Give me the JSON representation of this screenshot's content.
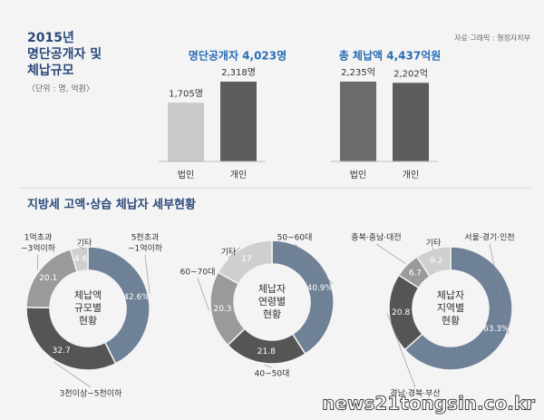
{
  "header": {
    "title_lines": [
      "2015년",
      "명단공개자 및",
      "체납규모"
    ],
    "unit": "〈단위 : 명, 억원〉",
    "source": "자료·그래픽 : 행정자치부",
    "section_title": "지방세 고액·상습 체납자 세부현황",
    "watermark": "news21tongsin.co.kr"
  },
  "chart_data": [
    {
      "type": "bar",
      "title": "명단공개자 4,023명",
      "categories": [
        "법인",
        "개인"
      ],
      "values": [
        1705,
        2318
      ],
      "value_labels": [
        "1,705명",
        "2,318명"
      ],
      "colors": [
        "#c9c9c9",
        "#5d5d5d"
      ]
    },
    {
      "type": "bar",
      "title": "총 체납액 4,437억원",
      "categories": [
        "법인",
        "개인"
      ],
      "values": [
        2235,
        2202
      ],
      "value_labels": [
        "2,235억",
        "2,202억"
      ],
      "colors": [
        "#6b6b6b",
        "#5d5d5d"
      ]
    },
    {
      "type": "donut",
      "center_label": [
        "체납액",
        "규모별",
        "현황"
      ],
      "categories": [
        [
          "5천초과",
          "~1억이하"
        ],
        [
          "3천이상~5천이하"
        ],
        [
          "1억초과",
          "~3억이하"
        ],
        [
          "기타"
        ]
      ],
      "values": [
        42.6,
        32.7,
        20.1,
        4.6
      ],
      "value_labels": [
        "42.6%",
        "32.7",
        "20.1",
        "4.6"
      ],
      "colors": [
        "#6f8197",
        "#555555",
        "#9a9a9a",
        "#cfcfcf"
      ]
    },
    {
      "type": "donut",
      "center_label": [
        "체납자",
        "연령별",
        "현황"
      ],
      "categories": [
        [
          "50~60대"
        ],
        [
          "40~50대"
        ],
        [
          "60~70대"
        ],
        [
          "기타"
        ]
      ],
      "values": [
        40.9,
        21.8,
        20.3,
        17
      ],
      "value_labels": [
        "40.9%",
        "21.8",
        "20.3",
        "17"
      ],
      "colors": [
        "#6f8197",
        "#555555",
        "#9a9a9a",
        "#cfcfcf"
      ]
    },
    {
      "type": "donut",
      "center_label": [
        "체납자",
        "지역별",
        "현황"
      ],
      "categories": [
        [
          "서울·경기·인천"
        ],
        [
          "경남·경북·부산"
        ],
        [
          "충북·충남·대전"
        ],
        [
          "기타"
        ]
      ],
      "values": [
        63.3,
        20.8,
        6.7,
        9.2
      ],
      "value_labels": [
        "63.3%",
        "20.8",
        "6.7",
        "9.2"
      ],
      "colors": [
        "#6f8197",
        "#555555",
        "#9a9a9a",
        "#cfcfcf"
      ]
    }
  ]
}
